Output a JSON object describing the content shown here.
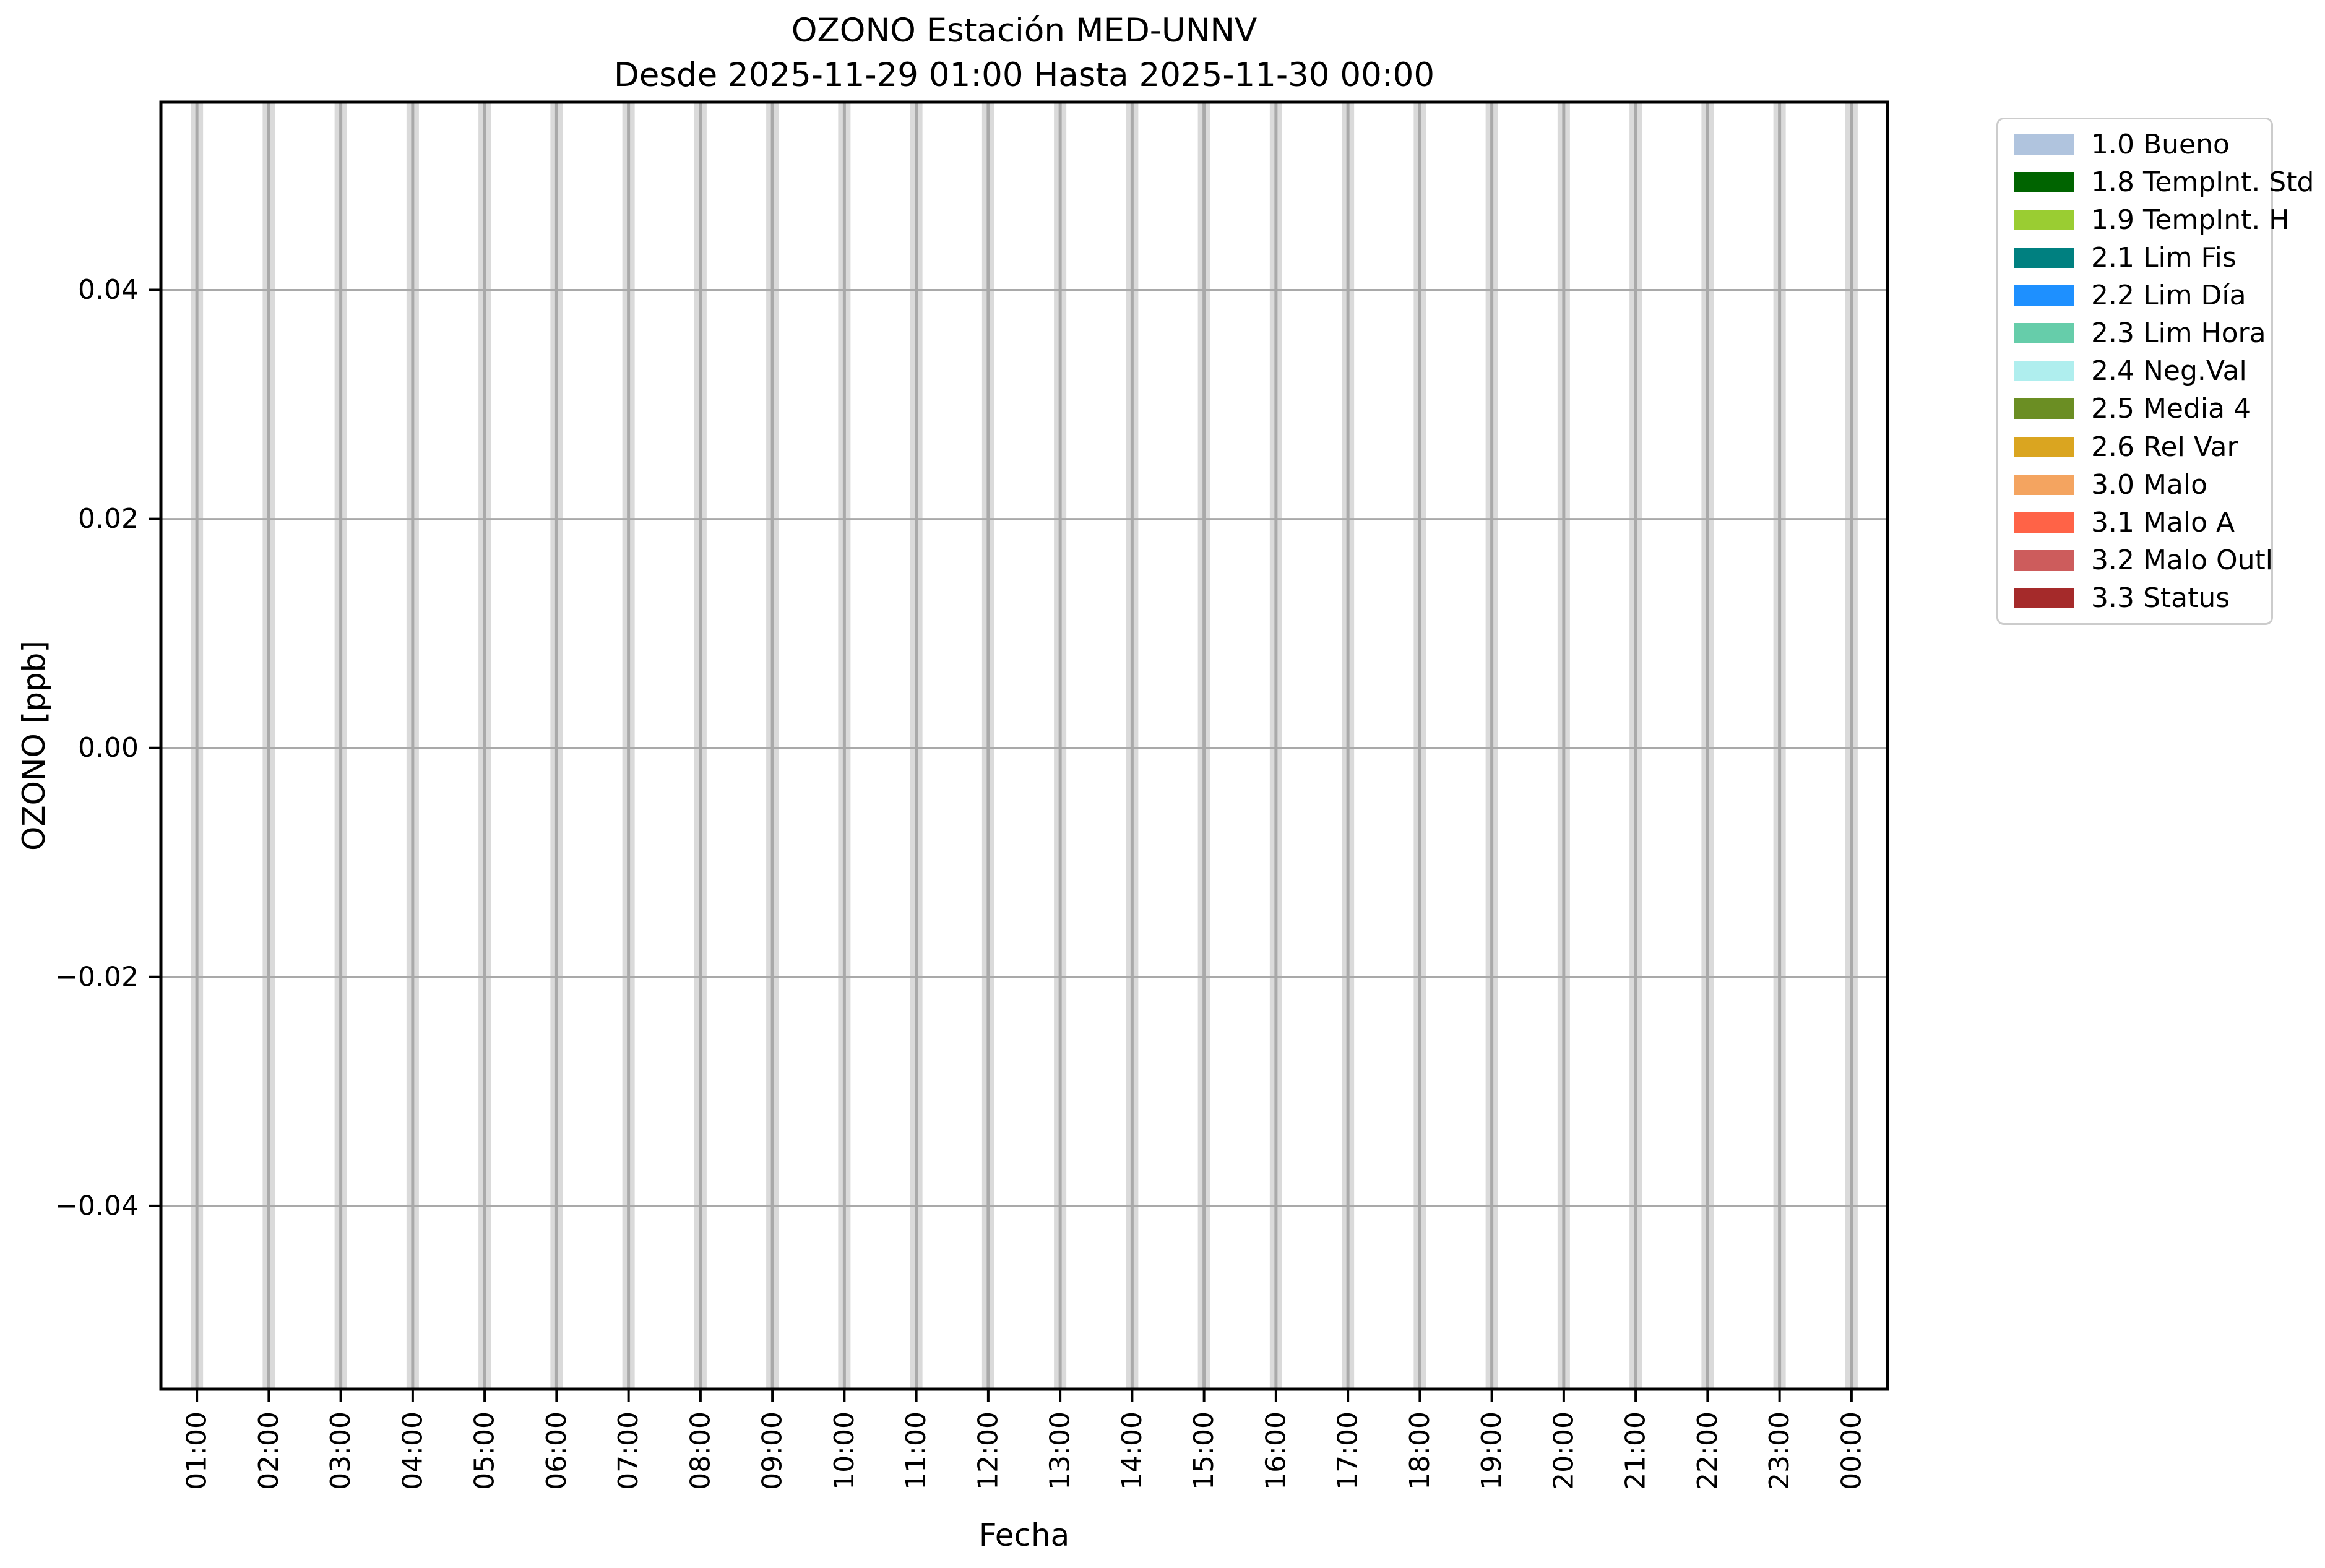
{
  "chart_data": {
    "type": "bar",
    "title": "OZONO Estación MED-UNNV",
    "subtitle": "Desde 2025-11-29 01:00 Hasta 2025-11-30 00:00",
    "xlabel": "Fecha",
    "ylabel": "OZONO [ppb]",
    "categories": [
      "01:00",
      "02:00",
      "03:00",
      "04:00",
      "05:00",
      "06:00",
      "07:00",
      "08:00",
      "09:00",
      "10:00",
      "11:00",
      "12:00",
      "13:00",
      "14:00",
      "15:00",
      "16:00",
      "17:00",
      "18:00",
      "19:00",
      "20:00",
      "21:00",
      "22:00",
      "23:00",
      "00:00"
    ],
    "values": [
      null,
      null,
      null,
      null,
      null,
      null,
      null,
      null,
      null,
      null,
      null,
      null,
      null,
      null,
      null,
      null,
      null,
      null,
      null,
      null,
      null,
      null,
      null,
      null
    ],
    "bars": {
      "full_height": true,
      "fill": "#dadada",
      "note": "no numeric data plotted; a gray placeholder bar spans the full y-range at every hour"
    },
    "ylim": [
      -0.056,
      0.0564
    ],
    "yticks": [
      {
        "value": 0.04,
        "label": "0.04"
      },
      {
        "value": 0.02,
        "label": "0.02"
      },
      {
        "value": 0.0,
        "label": "0.00"
      },
      {
        "value": -0.02,
        "label": "−0.02"
      },
      {
        "value": -0.04,
        "label": "−0.04"
      }
    ],
    "grid": {
      "show": true,
      "color": "#a9a9a9"
    },
    "legend": {
      "position": "outside upper right",
      "items": [
        {
          "label": "1.0 Bueno",
          "color": "#b0c4de"
        },
        {
          "label": "1.8 TempInt. Std",
          "color": "#006400"
        },
        {
          "label": "1.9 TempInt. H",
          "color": "#9acd32"
        },
        {
          "label": "2.1 Lim Fis",
          "color": "#008080"
        },
        {
          "label": "2.2 Lim Día",
          "color": "#1e90ff"
        },
        {
          "label": "2.3 Lim Hora",
          "color": "#66cdaa"
        },
        {
          "label": "2.4 Neg.Val",
          "color": "#afeeee"
        },
        {
          "label": "2.5 Media 4",
          "color": "#6b8e23"
        },
        {
          "label": "2.6 Rel Var",
          "color": "#daa520"
        },
        {
          "label": "3.0 Malo",
          "color": "#f4a460"
        },
        {
          "label": "3.1 Malo A",
          "color": "#ff6347"
        },
        {
          "label": "3.2 Malo Outl",
          "color": "#cd5c5c"
        },
        {
          "label": "3.3 Status",
          "color": "#a52a2a"
        }
      ]
    }
  }
}
